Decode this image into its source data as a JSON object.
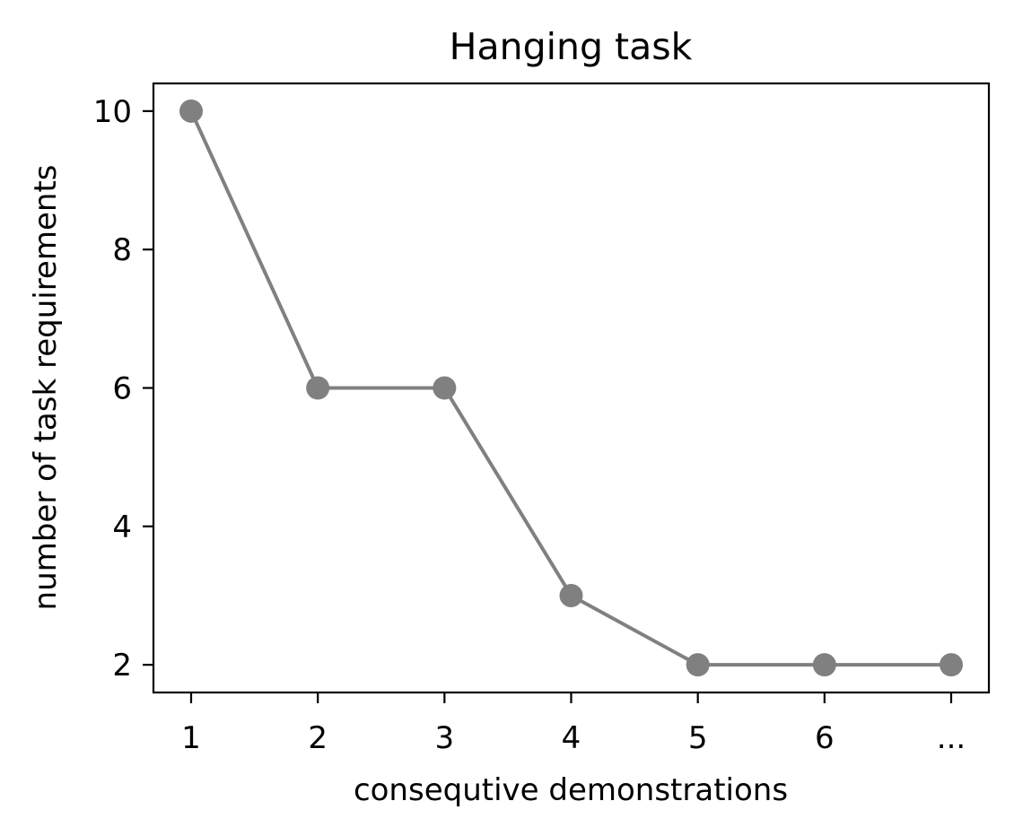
{
  "chart_data": {
    "type": "line",
    "title": "Hanging task",
    "xlabel": "consequtive demonstrations",
    "ylabel": "number of task requirements",
    "categories": [
      "1",
      "2",
      "3",
      "4",
      "5",
      "6",
      "..."
    ],
    "series": [
      {
        "values": [
          10,
          6,
          6,
          3,
          2,
          2,
          2
        ]
      }
    ],
    "yticks": [
      2,
      4,
      6,
      8,
      10
    ],
    "ytick_labels": [
      "2",
      "4",
      "6",
      "8",
      "10"
    ],
    "ylim": [
      1.6,
      10.4
    ],
    "grid": false,
    "colors": {
      "series": "#808080",
      "axes": "#000000"
    }
  }
}
